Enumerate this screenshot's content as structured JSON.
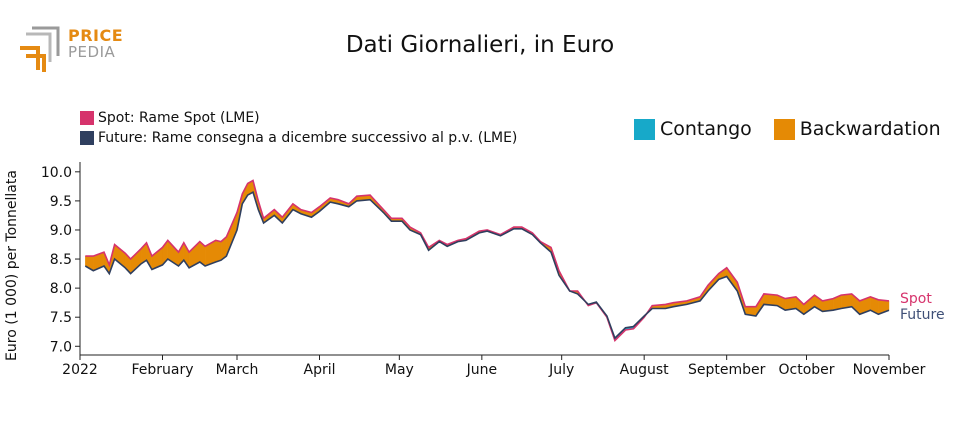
{
  "logo": {
    "word1": "PRICE",
    "word2": "PEDIA",
    "colors": {
      "orange": "#e58a12",
      "gray": "#9a9a9a"
    }
  },
  "title": "Dati Giornalieri, in Euro",
  "legend_series": [
    {
      "label": "Spot: Rame Spot (LME)",
      "color": "#d6336c"
    },
    {
      "label": "Future: Rame consegna a dicembre successivo al p.v. (LME)",
      "color": "#2f3f5f"
    }
  ],
  "legend_spread": [
    {
      "label": "Contango",
      "color": "#17a9c9"
    },
    {
      "label": "Backwardation",
      "color": "#e58a05"
    }
  ],
  "end_labels": {
    "spot": "Spot",
    "future": "Future"
  },
  "chart_data": {
    "type": "area",
    "title": "Dati Giornalieri, in Euro",
    "xlabel": "",
    "ylabel": "Euro (1 000) per Tonnellata",
    "ylim": [
      6.85,
      10.1
    ],
    "yticks": [
      "7.0",
      "7.5",
      "8.0",
      "8.5",
      "9.0",
      "9.5",
      "10.0"
    ],
    "xticks": [
      {
        "label": "2022",
        "date": "2022-01-01"
      },
      {
        "label": "February",
        "date": "2022-02-01"
      },
      {
        "label": "March",
        "date": "2022-03-01"
      },
      {
        "label": "April",
        "date": "2022-04-01"
      },
      {
        "label": "May",
        "date": "2022-05-01"
      },
      {
        "label": "June",
        "date": "2022-06-01"
      },
      {
        "label": "July",
        "date": "2022-07-01"
      },
      {
        "label": "August",
        "date": "2022-08-01"
      },
      {
        "label": "September",
        "date": "2022-09-01"
      },
      {
        "label": "October",
        "date": "2022-10-01"
      },
      {
        "label": "November",
        "date": "2022-11-01"
      }
    ],
    "xlim": [
      "2022-01-01",
      "2022-11-01"
    ],
    "x": [
      "2022-01-03",
      "2022-01-06",
      "2022-01-10",
      "2022-01-12",
      "2022-01-14",
      "2022-01-18",
      "2022-01-20",
      "2022-01-24",
      "2022-01-26",
      "2022-01-28",
      "2022-02-01",
      "2022-02-03",
      "2022-02-07",
      "2022-02-09",
      "2022-02-11",
      "2022-02-15",
      "2022-02-17",
      "2022-02-21",
      "2022-02-23",
      "2022-02-25",
      "2022-03-01",
      "2022-03-03",
      "2022-03-05",
      "2022-03-07",
      "2022-03-09",
      "2022-03-11",
      "2022-03-15",
      "2022-03-18",
      "2022-03-22",
      "2022-03-25",
      "2022-03-29",
      "2022-04-01",
      "2022-04-05",
      "2022-04-08",
      "2022-04-12",
      "2022-04-15",
      "2022-04-20",
      "2022-04-25",
      "2022-04-28",
      "2022-05-02",
      "2022-05-05",
      "2022-05-09",
      "2022-05-12",
      "2022-05-16",
      "2022-05-19",
      "2022-05-23",
      "2022-05-26",
      "2022-05-31",
      "2022-06-03",
      "2022-06-08",
      "2022-06-13",
      "2022-06-16",
      "2022-06-20",
      "2022-06-23",
      "2022-06-27",
      "2022-06-30",
      "2022-07-04",
      "2022-07-07",
      "2022-07-11",
      "2022-07-14",
      "2022-07-18",
      "2022-07-21",
      "2022-07-25",
      "2022-07-28",
      "2022-08-01",
      "2022-08-04",
      "2022-08-09",
      "2022-08-12",
      "2022-08-17",
      "2022-08-22",
      "2022-08-25",
      "2022-08-29",
      "2022-09-01",
      "2022-09-05",
      "2022-09-08",
      "2022-09-12",
      "2022-09-15",
      "2022-09-20",
      "2022-09-23",
      "2022-09-27",
      "2022-09-30",
      "2022-10-04",
      "2022-10-07",
      "2022-10-11",
      "2022-10-14",
      "2022-10-18",
      "2022-10-21",
      "2022-10-25",
      "2022-10-28",
      "2022-11-01"
    ],
    "series": [
      {
        "name": "Spot",
        "color": "#d6336c",
        "values": [
          8.55,
          8.55,
          8.62,
          8.4,
          8.75,
          8.6,
          8.5,
          8.68,
          8.78,
          8.55,
          8.7,
          8.82,
          8.62,
          8.78,
          8.62,
          8.8,
          8.72,
          8.82,
          8.8,
          8.88,
          9.3,
          9.62,
          9.8,
          9.85,
          9.5,
          9.2,
          9.35,
          9.22,
          9.45,
          9.35,
          9.3,
          9.4,
          9.55,
          9.52,
          9.45,
          9.58,
          9.6,
          9.35,
          9.2,
          9.2,
          9.05,
          8.95,
          8.7,
          8.82,
          8.75,
          8.82,
          8.85,
          8.98,
          9.0,
          8.92,
          9.05,
          9.05,
          8.95,
          8.8,
          8.7,
          8.3,
          7.95,
          7.95,
          7.7,
          7.75,
          7.5,
          7.1,
          7.28,
          7.3,
          7.5,
          7.7,
          7.72,
          7.75,
          7.78,
          7.85,
          8.05,
          8.25,
          8.35,
          8.1,
          7.68,
          7.68,
          7.9,
          7.88,
          7.82,
          7.85,
          7.72,
          7.88,
          7.78,
          7.82,
          7.88,
          7.9,
          7.78,
          7.85,
          7.8,
          7.78
        ]
      },
      {
        "name": "Future",
        "color": "#2f3f5f",
        "values": [
          8.38,
          8.3,
          8.38,
          8.25,
          8.5,
          8.35,
          8.25,
          8.42,
          8.48,
          8.32,
          8.4,
          8.5,
          8.38,
          8.48,
          8.35,
          8.45,
          8.38,
          8.45,
          8.48,
          8.55,
          9.0,
          9.45,
          9.6,
          9.65,
          9.35,
          9.12,
          9.25,
          9.12,
          9.35,
          9.28,
          9.22,
          9.32,
          9.48,
          9.45,
          9.4,
          9.5,
          9.52,
          9.3,
          9.15,
          9.15,
          9.0,
          8.92,
          8.65,
          8.8,
          8.72,
          8.8,
          8.82,
          8.95,
          8.98,
          8.9,
          9.02,
          9.02,
          8.92,
          8.78,
          8.62,
          8.22,
          7.95,
          7.9,
          7.72,
          7.76,
          7.52,
          7.14,
          7.32,
          7.34,
          7.52,
          7.65,
          7.65,
          7.68,
          7.72,
          7.78,
          7.95,
          8.15,
          8.2,
          7.95,
          7.55,
          7.52,
          7.72,
          7.7,
          7.62,
          7.65,
          7.55,
          7.68,
          7.6,
          7.62,
          7.65,
          7.68,
          7.55,
          7.62,
          7.55,
          7.62
        ]
      }
    ],
    "legend": "top",
    "grid": false
  }
}
